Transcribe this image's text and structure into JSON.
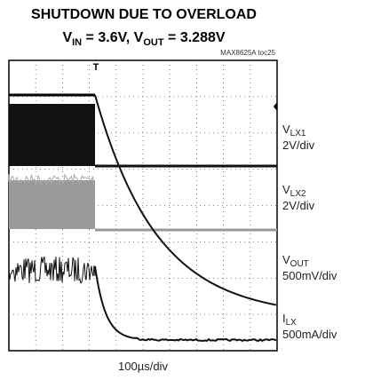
{
  "header": {
    "title": "SHUTDOWN DUE TO OVERLOAD",
    "subtitle": {
      "v1": "V",
      "sub1": "IN",
      "mid": " = 3.6V, V",
      "sub2": "OUT",
      "end": " = 3.288V"
    },
    "figure_id": "MAX8625A toc25"
  },
  "trigger": "T",
  "channels": [
    {
      "symbol": "V",
      "subscript": "LX1",
      "scale": "2V/div"
    },
    {
      "symbol": "V",
      "subscript": "LX2",
      "scale": "2V/div"
    },
    {
      "symbol": "V",
      "subscript": "OUT",
      "scale": "500mV/div"
    },
    {
      "symbol": "I",
      "subscript": "LX",
      "scale": "500mA/div"
    }
  ],
  "timebase": "100µs/div"
}
